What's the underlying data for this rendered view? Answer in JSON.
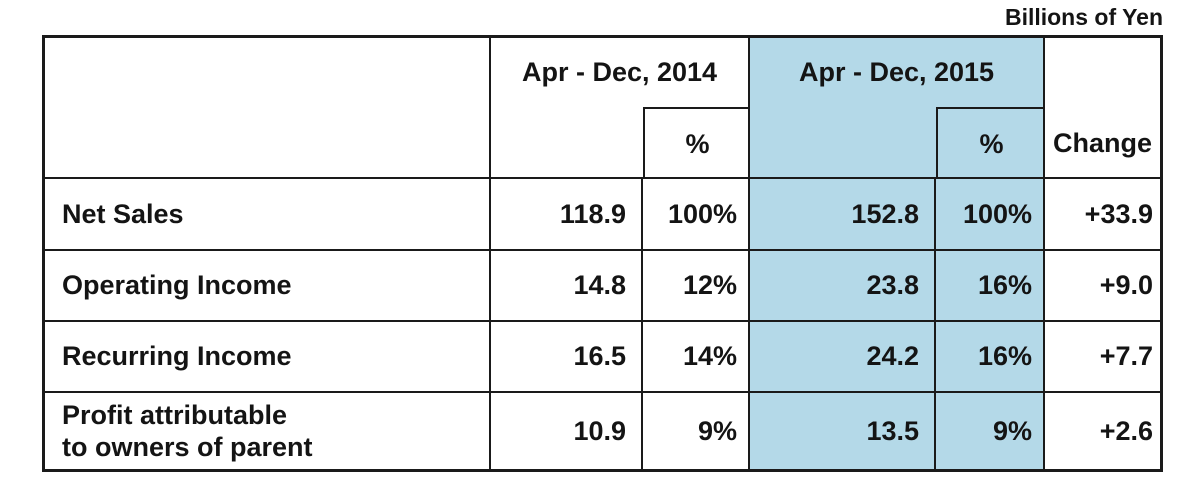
{
  "unit_label": "Billions of Yen",
  "table": {
    "period_headers": [
      {
        "label": "Apr - Dec, 2014",
        "highlighted": false
      },
      {
        "label": "Apr - Dec, 2015",
        "highlighted": true
      }
    ],
    "pct_header": "%",
    "change_header": "Change",
    "rows": [
      {
        "label": "Net Sales",
        "label_line2": "",
        "val_2014": "118.9",
        "pct_2014": "100%",
        "val_2015": "152.8",
        "pct_2015": "100%",
        "change": "+33.9"
      },
      {
        "label": "Operating Income",
        "label_line2": "",
        "val_2014": "14.8",
        "pct_2014": "12%",
        "val_2015": "23.8",
        "pct_2015": "16%",
        "change": "+9.0"
      },
      {
        "label": "Recurring Income",
        "label_line2": "",
        "val_2014": "16.5",
        "pct_2014": "14%",
        "val_2015": "24.2",
        "pct_2015": "16%",
        "change": "+7.7"
      },
      {
        "label": "Profit attributable",
        "label_line2": "to owners of parent",
        "val_2014": "10.9",
        "pct_2014": "9%",
        "val_2015": "13.5",
        "pct_2015": "9%",
        "change": "+2.6"
      }
    ],
    "colors": {
      "highlight_blue": "#b4d9e8",
      "border": "#1a1a1a",
      "text": "#141414",
      "background": "#ffffff"
    }
  },
  "chart_data": {
    "type": "table",
    "title": "Billions of Yen",
    "columns": [
      "",
      "Apr - Dec, 2014",
      "Apr - Dec, 2014 %",
      "Apr - Dec, 2015",
      "Apr - Dec, 2015 %",
      "Change"
    ],
    "rows": [
      [
        "Net Sales",
        118.9,
        "100%",
        152.8,
        "100%",
        "+33.9"
      ],
      [
        "Operating Income",
        14.8,
        "12%",
        23.8,
        "16%",
        "+9.0"
      ],
      [
        "Recurring Income",
        16.5,
        "14%",
        24.2,
        "16%",
        "+7.7"
      ],
      [
        "Profit attributable to owners of parent",
        10.9,
        "9%",
        13.5,
        "9%",
        "+2.6"
      ]
    ],
    "layout_hints": {
      "highlighted_columns": [
        "Apr - Dec, 2015",
        "Apr - Dec, 2015 %"
      ],
      "highlight_color": "#b4d9e8",
      "values_unit": "Billions of Yen"
    }
  }
}
